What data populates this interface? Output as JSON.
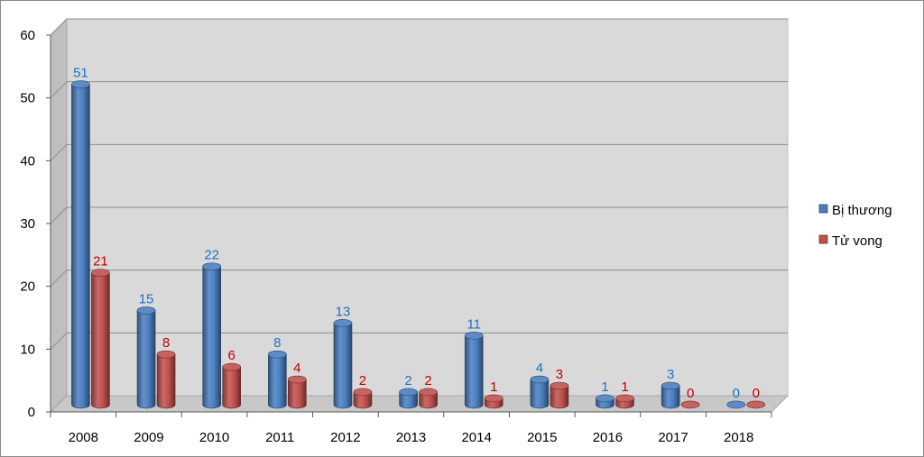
{
  "chart_data": {
    "type": "bar",
    "categories": [
      "2008",
      "2009",
      "2010",
      "2011",
      "2012",
      "2013",
      "2014",
      "2015",
      "2016",
      "2017",
      "2018"
    ],
    "series": [
      {
        "name": "Bị thương",
        "values": [
          51,
          15,
          22,
          8,
          13,
          2,
          11,
          4,
          1,
          3,
          0
        ],
        "color": "#4a7ebf",
        "label_color": "#1f6fc5"
      },
      {
        "name": "Tử vong",
        "values": [
          21,
          8,
          6,
          4,
          2,
          2,
          1,
          3,
          1,
          0,
          0
        ],
        "color": "#c0504d",
        "label_color": "#c00000"
      }
    ],
    "y_ticks": [
      "0",
      "10",
      "20",
      "30",
      "40",
      "50",
      "60"
    ],
    "ylim": [
      0,
      60
    ],
    "grid": true,
    "legend_position": "right",
    "three_d": true,
    "bar_shape": "cylinder",
    "title": "",
    "xlabel": "",
    "ylabel": ""
  }
}
